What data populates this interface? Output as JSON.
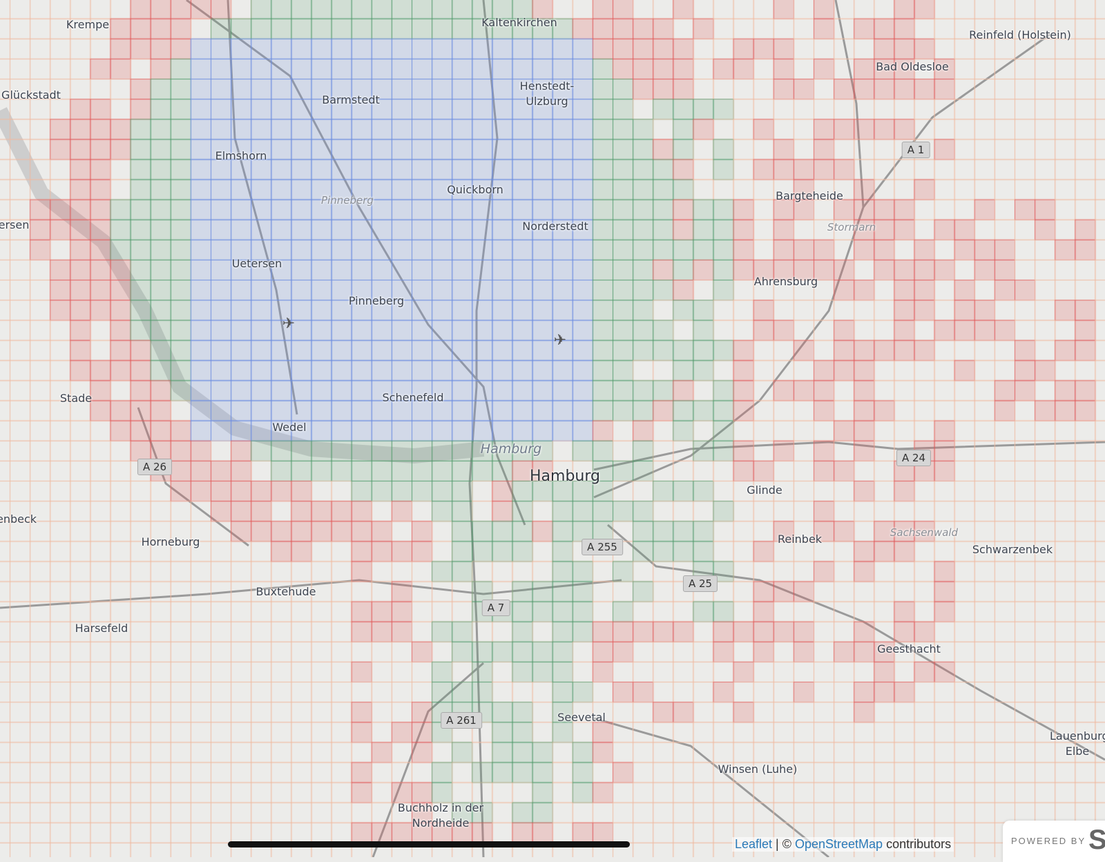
{
  "map": {
    "places": [
      "Krempe",
      "Kaltenkirchen",
      "Reinfeld (Holstein)",
      "Bad Oldesloe",
      "Glückstadt",
      "Barmstedt",
      "Henstedt-Ulzburg",
      "Elmshorn",
      "Quickborn",
      "Bargteheide",
      "ersen",
      "Norderstedt",
      "Uetersen",
      "Ahrensburg",
      "Pinneberg",
      "Schenefeld",
      "Stade",
      "Wedel",
      "Hamburg",
      "Glinde",
      "enbeck",
      "Horneburg",
      "Reinbek",
      "Schwarzenbek",
      "Buxtehude",
      "Harsefeld",
      "Geesthacht",
      "Seevetal",
      "Lauenburg/ Elbe",
      "Winsen (Luhe)",
      "Buchholz in der Nordheide"
    ],
    "regions": [
      "Pinneberg",
      "Stormarn",
      "Hamburg",
      "Sachsenwald"
    ],
    "road_shields": [
      "A 1",
      "A 24",
      "A 26",
      "A 255",
      "A 25",
      "A 7",
      "A 261"
    ],
    "icons": [
      "airport-icon",
      "airport-icon"
    ],
    "tile_colors": {
      "square": "#6f8fe0",
      "cluster": "#4f9a6a",
      "visited": "#e05a5a",
      "grid": "#f0b9a0"
    }
  },
  "attribution": {
    "leaflet": "Leaflet",
    "sep": " | © ",
    "osm": "OpenStreetMap",
    "contributors": " contributors"
  },
  "powered_by": {
    "label": "POWERED BY",
    "logo": "S"
  }
}
